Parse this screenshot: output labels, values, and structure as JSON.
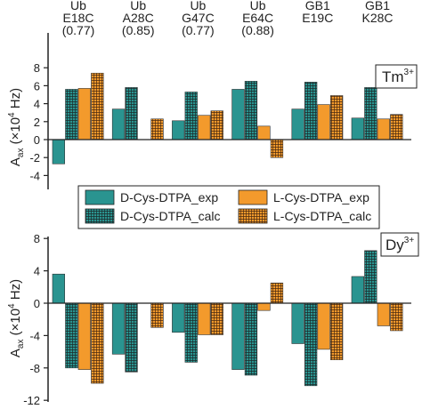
{
  "colors": {
    "teal": "#2a9490",
    "orange": "#f39a2c",
    "axis": "#222222"
  },
  "chart_data": [
    {
      "type": "bar",
      "panel": "top",
      "categories": [
        "Ub E18C",
        "Ub A28C",
        "Ub G47C",
        "Ub E64C",
        "GB1 E19C",
        "GB1 K28C"
      ],
      "category_lines": [
        [
          "Ub",
          "E18C",
          "(0.77)"
        ],
        [
          "Ub",
          "A28C",
          "(0.85)"
        ],
        [
          "Ub",
          "G47C",
          "(0.77)"
        ],
        [
          "Ub",
          "E64C",
          "(0.88)"
        ],
        [
          "GB1",
          "E19C"
        ],
        [
          "GB1",
          "K28C"
        ]
      ],
      "ylabel_main": "A",
      "ylabel_sub": "ax",
      "ylabel_rest": " (×10",
      "ylabel_exp": "4",
      "ylabel_unit": " Hz)",
      "ylim": [
        -4,
        8
      ],
      "yticks": [
        -4,
        -2,
        0,
        2,
        4,
        6,
        8
      ],
      "ion_label": "Tm",
      "ion_charge": "3+",
      "series": [
        {
          "name": "D-Cys-DTPA_exp",
          "pattern": "solid",
          "color": "teal",
          "values": [
            -2.7,
            3.4,
            2.1,
            5.6,
            3.4,
            2.4
          ]
        },
        {
          "name": "D-Cys-DTPA_calc",
          "pattern": "grid",
          "color": "teal",
          "values": [
            5.6,
            5.8,
            5.3,
            6.5,
            6.4,
            5.8
          ]
        },
        {
          "name": "L-Cys-DTPA_exp",
          "pattern": "solid",
          "color": "orange",
          "values": [
            5.7,
            0,
            2.7,
            1.5,
            3.9,
            2.3
          ]
        },
        {
          "name": "L-Cys-DTPA_calc",
          "pattern": "grid",
          "color": "orange",
          "values": [
            7.4,
            2.3,
            3.2,
            -2.0,
            4.9,
            2.8
          ]
        }
      ]
    },
    {
      "type": "bar",
      "panel": "bottom",
      "categories": [
        "Ub E18C",
        "Ub A28C",
        "Ub G47C",
        "Ub E64C",
        "GB1 E19C",
        "GB1 K28C"
      ],
      "ylabel_main": "A",
      "ylabel_sub": "ax",
      "ylabel_rest": " (×10",
      "ylabel_exp": "4",
      "ylabel_unit": " Hz)",
      "ylim": [
        -12,
        8
      ],
      "yticks": [
        -12,
        -8,
        -4,
        0,
        4,
        8
      ],
      "ion_label": "Dy",
      "ion_charge": "3+",
      "series": [
        {
          "name": "D-Cys-DTPA_exp",
          "pattern": "solid",
          "color": "teal",
          "values": [
            3.6,
            -6.3,
            -3.6,
            -8.2,
            -5.0,
            3.3
          ]
        },
        {
          "name": "D-Cys-DTPA_calc",
          "pattern": "grid",
          "color": "teal",
          "values": [
            -8.0,
            -8.5,
            -7.3,
            -8.9,
            -10.2,
            6.5
          ]
        },
        {
          "name": "L-Cys-DTPA_exp",
          "pattern": "solid",
          "color": "orange",
          "values": [
            -8.2,
            0,
            -3.9,
            -0.9,
            -5.7,
            -2.8
          ]
        },
        {
          "name": "L-Cys-DTPA_calc",
          "pattern": "grid",
          "color": "orange",
          "values": [
            -9.9,
            -3.0,
            -3.9,
            2.5,
            -7.0,
            -3.4
          ]
        }
      ]
    }
  ],
  "legend": {
    "items": [
      "D-Cys-DTPA_exp",
      "L-Cys-DTPA_exp",
      "D-Cys-DTPA_calc",
      "L-Cys-DTPA_calc"
    ]
  }
}
